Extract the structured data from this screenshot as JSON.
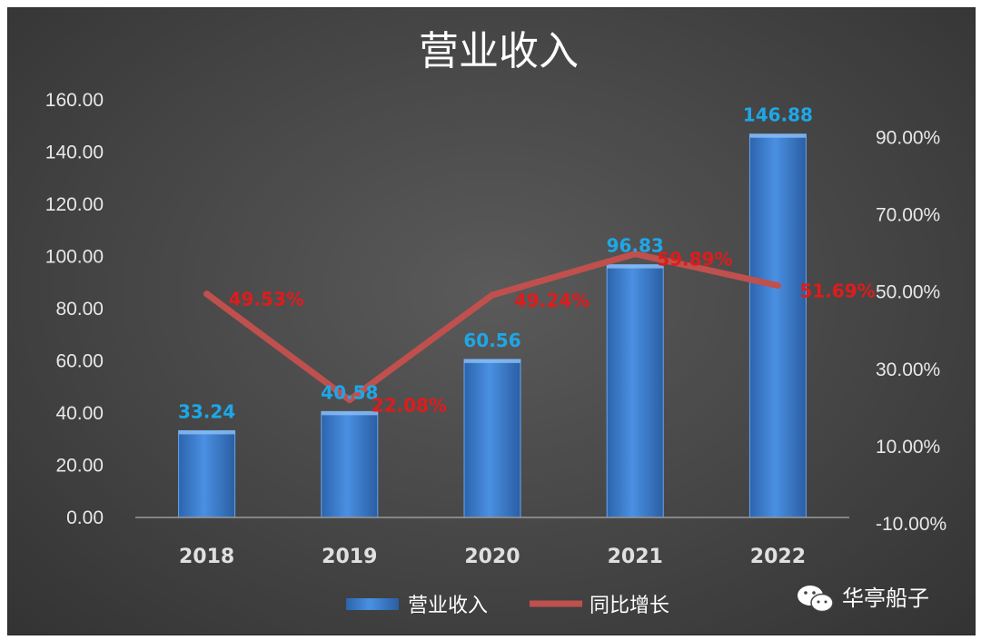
{
  "chart_data": {
    "type": "bar",
    "title": "营业收入",
    "categories": [
      "2018",
      "2019",
      "2020",
      "2021",
      "2022"
    ],
    "series": [
      {
        "name": "营业收入",
        "type": "bar",
        "axis": "left",
        "values": [
          33.24,
          40.58,
          60.56,
          96.83,
          146.88
        ],
        "labels": [
          "33.24",
          "40.58",
          "60.56",
          "96.83",
          "146.88"
        ]
      },
      {
        "name": "同比增长",
        "type": "line",
        "axis": "right",
        "values": [
          49.53,
          22.08,
          49.24,
          59.89,
          51.69
        ],
        "labels": [
          "49.53%",
          "22.08%",
          "49.24%",
          "59.89%",
          "51.69%"
        ]
      }
    ],
    "left_axis": {
      "ylim": [
        0,
        160
      ],
      "ticks": [
        "0.00",
        "20.00",
        "40.00",
        "60.00",
        "80.00",
        "100.00",
        "120.00",
        "140.00",
        "160.00"
      ]
    },
    "right_axis": {
      "ylim": [
        -10,
        100
      ],
      "tick_values": [
        -10,
        10,
        30,
        50,
        70,
        90
      ],
      "ticks": [
        "-10.00%",
        "10.00%",
        "30.00%",
        "50.00%",
        "70.00%",
        "90.00%"
      ]
    },
    "grid": false,
    "legend_position": "bottom"
  },
  "colors": {
    "bar": "#3f83d8",
    "line": "#c0504d",
    "bar_label": "#1ea7e8",
    "line_label": "#e01b1b"
  },
  "watermark": {
    "text": "华亭船子",
    "icon": "wechat-icon"
  }
}
